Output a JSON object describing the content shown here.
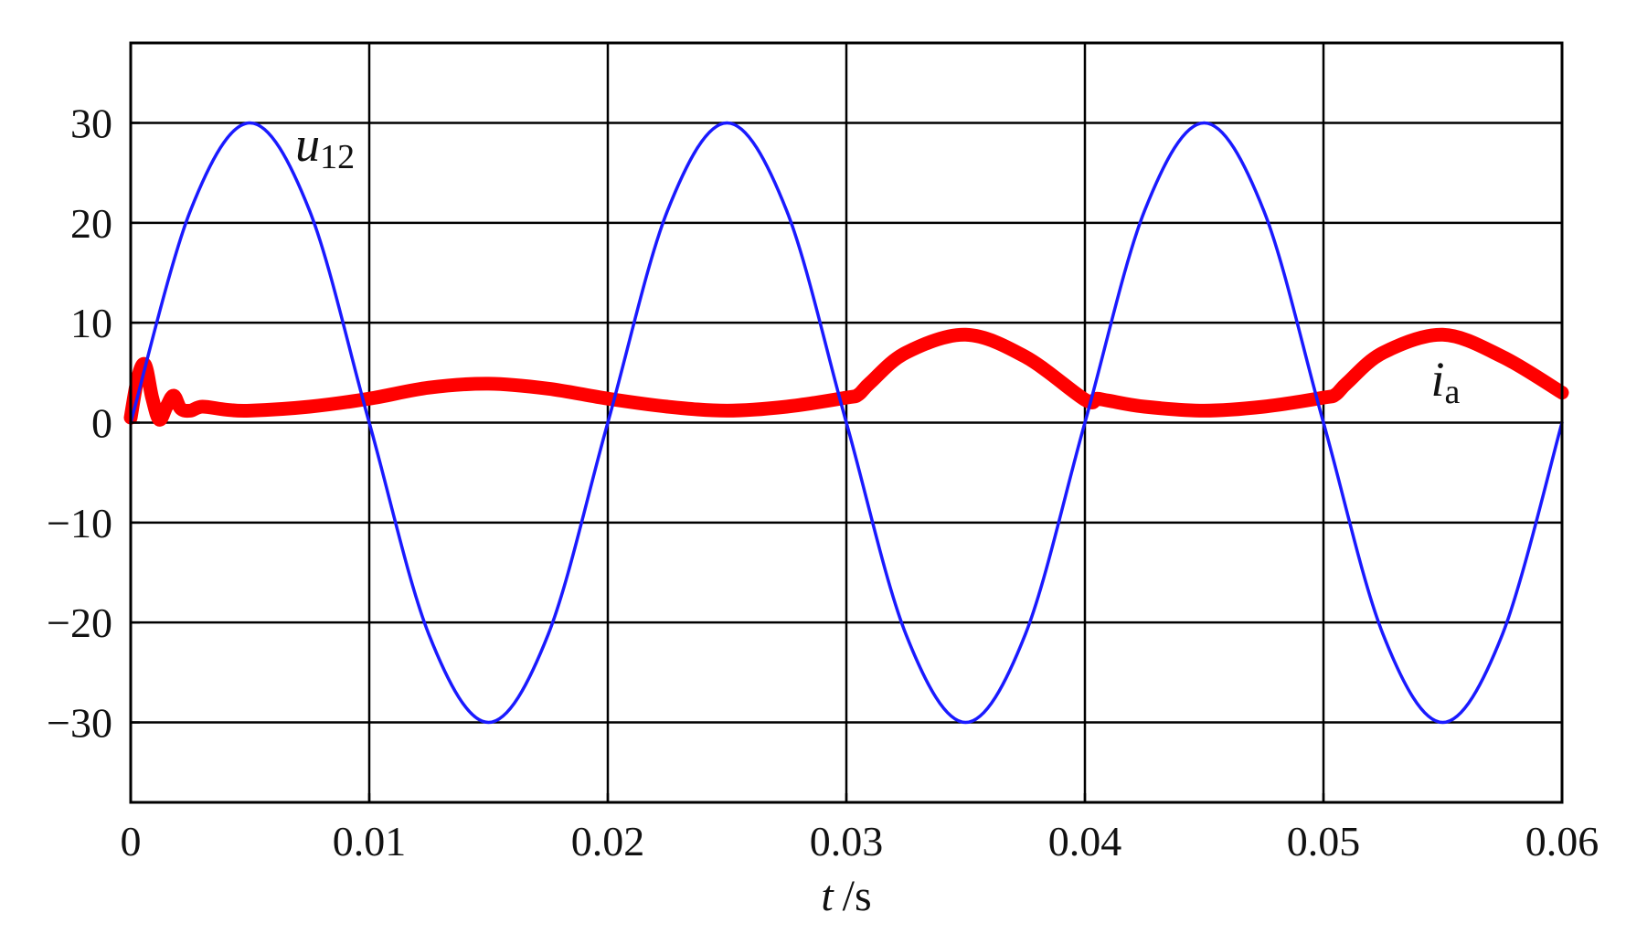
{
  "chart_data": {
    "type": "line",
    "title": "",
    "xlabel": {
      "var": "t",
      "unit": "/s"
    },
    "ylabel": "",
    "xlim": [
      0,
      0.06
    ],
    "ylim": [
      -38,
      38
    ],
    "grid": true,
    "xticks": [
      0,
      0.01,
      0.02,
      0.03,
      0.04,
      0.05,
      0.06
    ],
    "xtick_labels": [
      "0",
      "0.01",
      "0.02",
      "0.03",
      "0.04",
      "0.05",
      "0.06"
    ],
    "yticks": [
      -30,
      -20,
      -10,
      0,
      10,
      20,
      30
    ],
    "ytick_labels": [
      "−30",
      "−20",
      "−10",
      "0",
      "10",
      "20",
      "30"
    ],
    "series": [
      {
        "name": {
          "base": "u",
          "sub": "12"
        },
        "color": "#1a1aff",
        "x": [
          0,
          0.0025,
          0.005,
          0.0075,
          0.01,
          0.0125,
          0.015,
          0.0175,
          0.02,
          0.0225,
          0.025,
          0.0275,
          0.03,
          0.0325,
          0.035,
          0.0375,
          0.04,
          0.0425,
          0.045,
          0.0475,
          0.05,
          0.0525,
          0.055,
          0.0575,
          0.06
        ],
        "values": [
          0,
          21.2,
          30,
          21.2,
          0,
          -21.2,
          -30,
          -21.2,
          0,
          21.2,
          30,
          21.2,
          0,
          -21.2,
          -30,
          -21.2,
          0,
          21.2,
          30,
          21.2,
          0,
          -21.2,
          -30,
          -21.2,
          0
        ]
      },
      {
        "name": {
          "base": "i",
          "sub": "a"
        },
        "color": "#ff0000",
        "x": [
          0,
          0.0003,
          0.0006,
          0.0009,
          0.0012,
          0.0015,
          0.0018,
          0.0021,
          0.0025,
          0.003,
          0.004,
          0.005,
          0.0075,
          0.01,
          0.0125,
          0.015,
          0.0175,
          0.02,
          0.0225,
          0.025,
          0.0275,
          0.03,
          0.0305,
          0.031,
          0.0325,
          0.035,
          0.0375,
          0.04,
          0.0405,
          0.041,
          0.0425,
          0.045,
          0.0475,
          0.05,
          0.0505,
          0.051,
          0.0525,
          0.055,
          0.0575,
          0.06
        ],
        "values": [
          0.5,
          4.5,
          5.8,
          2.5,
          0.3,
          1.6,
          2.7,
          1.4,
          1.2,
          1.6,
          1.3,
          1.2,
          1.6,
          2.4,
          3.5,
          3.9,
          3.4,
          2.4,
          1.6,
          1.2,
          1.6,
          2.5,
          2.8,
          4,
          7,
          8.8,
          6.6,
          2.3,
          2.4,
          2.2,
          1.6,
          1.2,
          1.6,
          2.5,
          2.8,
          4,
          7,
          8.8,
          6.6,
          3
        ]
      }
    ]
  }
}
